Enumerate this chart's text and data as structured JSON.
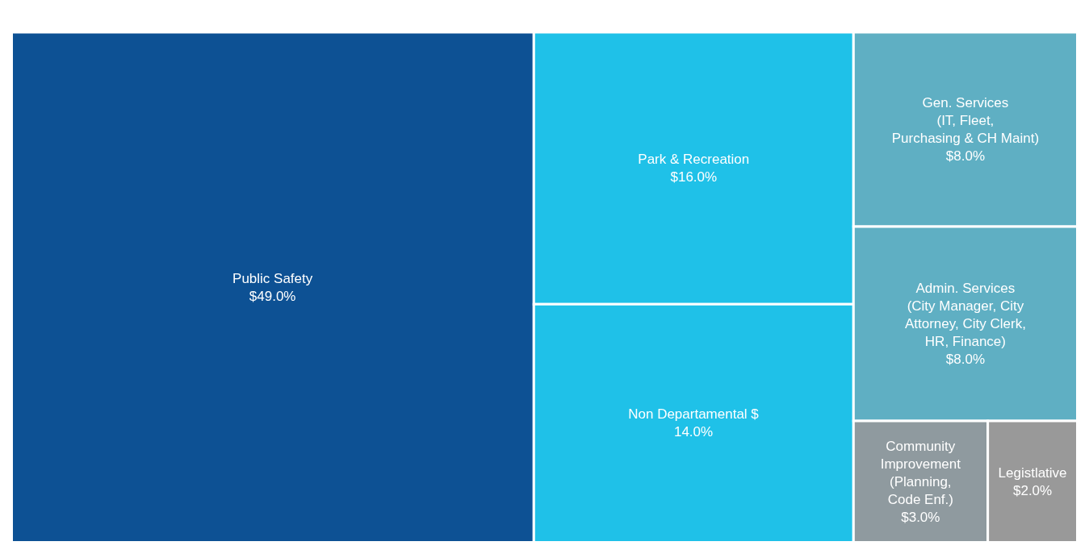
{
  "chart_data": {
    "type": "other",
    "categories": [
      "Public Safety",
      "Park & Recreation",
      "Non Departamental $",
      "Gen. Services\n(IT, Fleet,\nPurchasing & CH Maint)",
      "Admin. Services\n(City Manager, City\nAttorney, City Clerk,\nHR, Finance)",
      "Community\nImprovement\n(Planning,\nCode Enf.)",
      "Legistlative"
    ],
    "values": [
      49.0,
      16.0,
      14.0,
      8.0,
      8.0,
      3.0,
      2.0
    ],
    "value_labels": [
      "$49.0%",
      "$16.0%",
      "14.0%",
      "$8.0%",
      "$8.0%",
      "$3.0%",
      "$2.0%"
    ],
    "colors": [
      "#0d5194",
      "#1fc1e8",
      "#1fc1e8",
      "#5fafc3",
      "#5fafc3",
      "#8f9a9f",
      "#999999"
    ]
  }
}
